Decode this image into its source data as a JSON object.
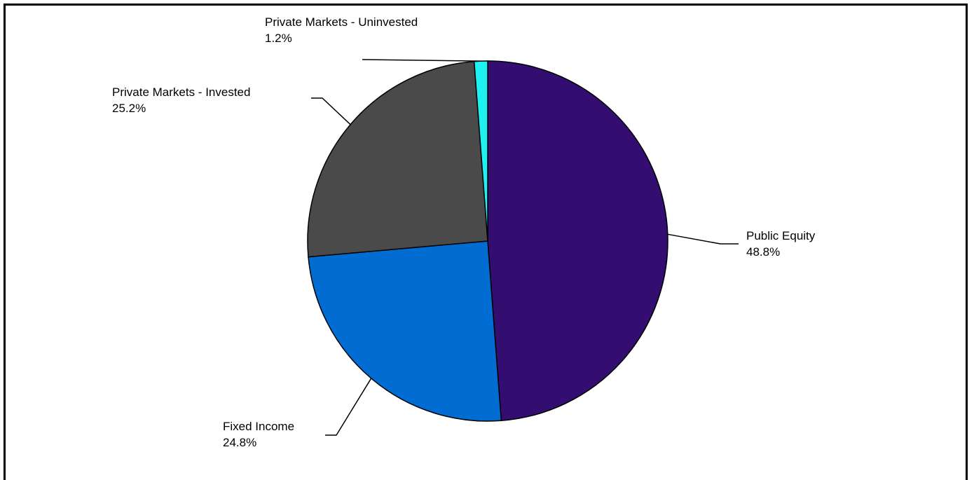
{
  "chart_data": {
    "type": "pie",
    "title": "",
    "slices": [
      {
        "label": "Public Equity",
        "value": 48.8,
        "value_label": "48.8%",
        "color": "#330e70"
      },
      {
        "label": "Fixed Income",
        "value": 24.8,
        "value_label": "24.8%",
        "color": "#016dd3"
      },
      {
        "label": "Private Markets - Invested",
        "value": 25.2,
        "value_label": "25.2%",
        "color": "#4a4a4a"
      },
      {
        "label": "Private Markets - Uninvested",
        "value": 1.2,
        "value_label": "1.2%",
        "color": "#1ef1f1"
      }
    ],
    "start": "12 o'clock",
    "direction": "clockwise",
    "legend": "none",
    "labels": "outside with leader lines"
  }
}
